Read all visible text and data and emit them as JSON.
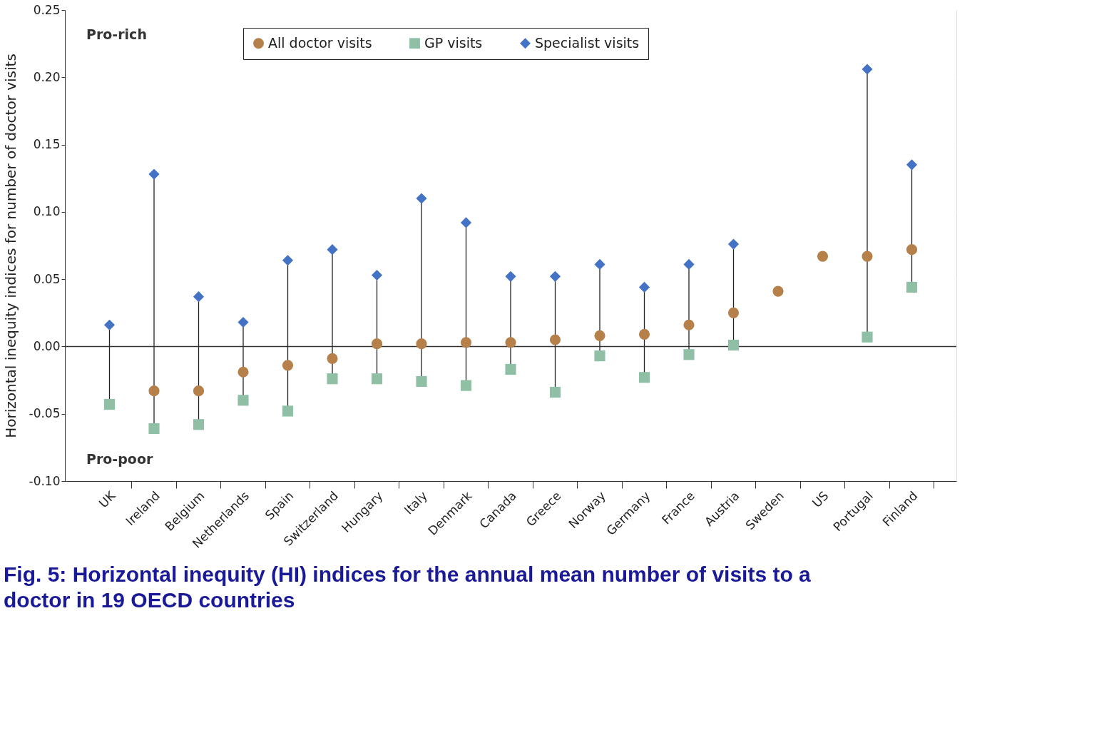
{
  "chart_data": {
    "type": "scatter",
    "title": "Fig. 5: Horizontal inequity (HI) indices for the annual mean number of visits to a doctor in 19 OECD countries",
    "ylabel": "Horizontal inequity indices for number of doctor visits",
    "categories": [
      "UK",
      "Ireland",
      "Belgium",
      "Netherlands",
      "Spain",
      "Switzerland",
      "Hungary",
      "Italy",
      "Denmark",
      "Canada",
      "Greece",
      "Norway",
      "Germany",
      "France",
      "Austria",
      "Sweden",
      "US",
      "Portugal",
      "Finland"
    ],
    "series": [
      {
        "name": "All doctor visits",
        "color": "#b5804a",
        "marker": "circle",
        "values": [
          null,
          -0.033,
          -0.033,
          -0.019,
          -0.014,
          -0.009,
          0.002,
          0.002,
          0.003,
          0.003,
          0.005,
          0.008,
          0.009,
          0.016,
          0.025,
          0.041,
          0.067,
          0.067,
          0.072
        ]
      },
      {
        "name": "GP visits",
        "color": "#8fbfa5",
        "marker": "square",
        "values": [
          -0.043,
          -0.061,
          -0.058,
          -0.04,
          -0.048,
          -0.024,
          -0.024,
          -0.026,
          -0.029,
          -0.017,
          -0.034,
          -0.007,
          -0.023,
          -0.006,
          0.001,
          null,
          null,
          0.007,
          0.044
        ]
      },
      {
        "name": "Specialist visits",
        "color": "#4472c4",
        "marker": "diamond",
        "values": [
          0.016,
          0.128,
          0.037,
          0.018,
          0.064,
          0.072,
          0.053,
          0.11,
          0.092,
          0.052,
          0.052,
          0.061,
          0.044,
          0.061,
          0.076,
          null,
          null,
          0.206,
          0.135
        ]
      }
    ],
    "ylim": [
      -0.1,
      0.25
    ],
    "yticks": [
      {
        "value": -0.1,
        "label": "-0.10"
      },
      {
        "value": -0.05,
        "label": "-0.05"
      },
      {
        "value": 0,
        "label": "0.00"
      },
      {
        "value": 0.05,
        "label": "0.05"
      },
      {
        "value": 0.1,
        "label": "0.10"
      },
      {
        "value": 0.15,
        "label": "0.15"
      },
      {
        "value": 0.2,
        "label": "0.20"
      },
      {
        "value": 0.25,
        "label": "0.25"
      }
    ],
    "ref_lines": [
      {
        "axis": "y",
        "value": 0,
        "color": "#333333"
      }
    ],
    "annotations": [
      "Pro-rich",
      "Pro-poor"
    ],
    "grid": "y",
    "legend": "top"
  }
}
